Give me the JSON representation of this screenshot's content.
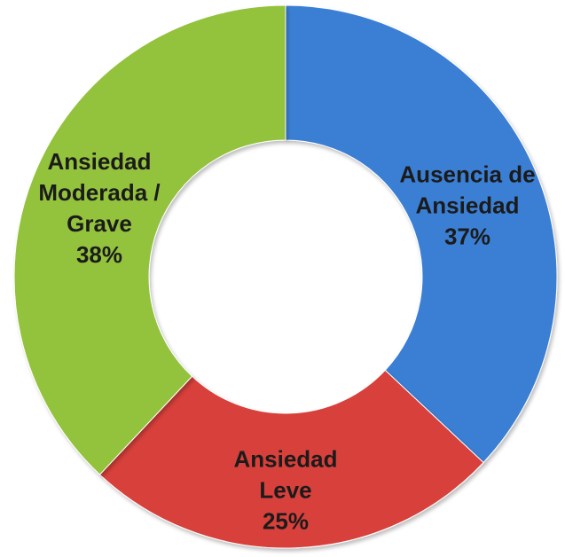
{
  "chart_data": {
    "type": "donut",
    "categories": [
      "Ausencia de Ansiedad",
      "Ansiedad Leve",
      "Ansiedad Moderada / Grave"
    ],
    "values": [
      37,
      25,
      38
    ],
    "value_labels": [
      "37%",
      "25%",
      "38%"
    ],
    "colors": [
      "#3b7fd4",
      "#d8403a",
      "#93c23d"
    ]
  }
}
